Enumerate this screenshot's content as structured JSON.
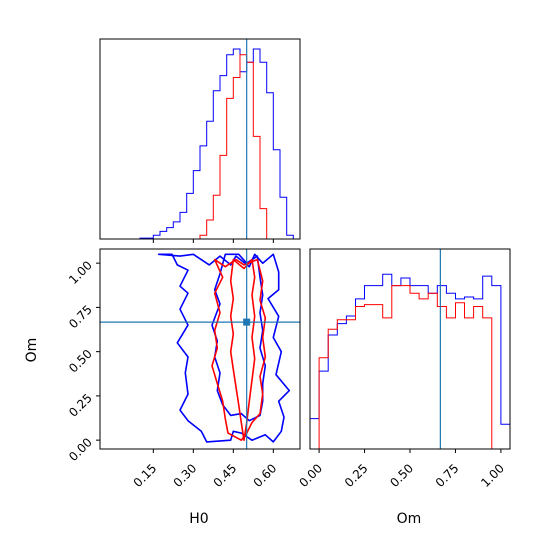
{
  "chart_data": {
    "type": "corner",
    "parameters": [
      "H0",
      "Om"
    ],
    "truth": {
      "H0": 0.5,
      "Om": 0.667,
      "color": "#1f77b4"
    },
    "series_colors": [
      "#0000ff",
      "#ff0000"
    ],
    "panels": {
      "h0_hist": {
        "type": "step-histogram",
        "xlim": [
          -0.05,
          0.7
        ],
        "bin_edges": [
          0.1,
          0.15,
          0.175,
          0.2,
          0.225,
          0.25,
          0.275,
          0.3,
          0.325,
          0.35,
          0.375,
          0.4,
          0.425,
          0.45,
          0.475,
          0.5,
          0.525,
          0.55,
          0.575,
          0.6,
          0.625,
          0.65,
          0.675,
          0.7
        ],
        "series": [
          {
            "color": "#0000ff",
            "values": [
              0.005,
              0.02,
              0.04,
              0.06,
              0.09,
              0.14,
              0.24,
              0.36,
              0.49,
              0.62,
              0.78,
              0.86,
              0.97,
              1.0,
              0.88,
              0.93,
              1.0,
              0.93,
              0.77,
              0.47,
              0.22,
              0.02,
              0.0
            ]
          },
          {
            "color": "#ff0000",
            "values": [
              0.0,
              0.0,
              0.0,
              0.0,
              0.0,
              0.0,
              0.0,
              0.0,
              0.02,
              0.1,
              0.23,
              0.44,
              0.74,
              0.85,
              0.97,
              0.93,
              0.54,
              0.16,
              0.0,
              0.0,
              0.0,
              0.0,
              0.0
            ]
          }
        ]
      },
      "om_hist": {
        "type": "step-histogram",
        "xlim": [
          -0.05,
          1.05
        ],
        "xticks": [
          "0.00",
          "0.25",
          "0.50",
          "0.75",
          "1.00"
        ],
        "bin_edges": [
          -0.05,
          0.0,
          0.05,
          0.1,
          0.15,
          0.2,
          0.25,
          0.3,
          0.35,
          0.4,
          0.45,
          0.5,
          0.55,
          0.6,
          0.65,
          0.7,
          0.75,
          0.8,
          0.85,
          0.9,
          0.95,
          1.0,
          1.05
        ],
        "series": [
          {
            "color": "#0000ff",
            "values": [
              0.16,
              0.41,
              0.6,
              0.66,
              0.7,
              0.79,
              0.86,
              0.86,
              0.92,
              0.86,
              0.9,
              0.86,
              0.86,
              0.82,
              0.86,
              0.82,
              0.79,
              0.8,
              0.79,
              0.91,
              0.86,
              0.13
            ]
          },
          {
            "color": "#ff0000",
            "values": [
              0.0,
              0.48,
              0.63,
              0.68,
              0.68,
              0.75,
              0.76,
              0.76,
              0.69,
              0.86,
              0.86,
              0.82,
              0.79,
              0.82,
              0.75,
              0.69,
              0.77,
              0.69,
              0.75,
              0.69,
              0.0,
              0.0
            ]
          }
        ]
      },
      "joint": {
        "type": "contour",
        "xlabel": "H0",
        "ylabel": "Om",
        "xlim": [
          -0.05,
          0.7
        ],
        "ylim": [
          -0.05,
          1.08
        ],
        "xticks": [
          "0.15",
          "0.30",
          "0.45",
          "0.60"
        ],
        "yticks": [
          "0.00",
          "0.25",
          "0.50",
          "0.75",
          "1.00"
        ],
        "contours": [
          {
            "color": "#0000ff",
            "points": [
              [
                0.17,
                1.05
              ],
              [
                0.22,
                1.05
              ],
              [
                0.24,
                0.99
              ],
              [
                0.28,
                0.96
              ],
              [
                0.25,
                0.87
              ],
              [
                0.28,
                0.83
              ],
              [
                0.25,
                0.74
              ],
              [
                0.28,
                0.65
              ],
              [
                0.24,
                0.55
              ],
              [
                0.28,
                0.47
              ],
              [
                0.27,
                0.38
              ],
              [
                0.28,
                0.26
              ],
              [
                0.25,
                0.17
              ],
              [
                0.28,
                0.11
              ],
              [
                0.33,
                0.05
              ],
              [
                0.35,
                -0.01
              ],
              [
                0.44,
                0.0
              ],
              [
                0.45,
                0.05
              ],
              [
                0.48,
                0.04
              ],
              [
                0.52,
                0.0
              ],
              [
                0.57,
                0.03
              ],
              [
                0.6,
                -0.01
              ],
              [
                0.63,
                0.05
              ],
              [
                0.64,
                0.13
              ],
              [
                0.62,
                0.22
              ],
              [
                0.66,
                0.28
              ],
              [
                0.61,
                0.37
              ],
              [
                0.63,
                0.5
              ],
              [
                0.6,
                0.58
              ],
              [
                0.62,
                0.7
              ],
              [
                0.58,
                0.8
              ],
              [
                0.62,
                0.85
              ],
              [
                0.62,
                0.95
              ],
              [
                0.6,
                1.05
              ],
              [
                0.56,
                1.0
              ],
              [
                0.53,
                1.05
              ],
              [
                0.51,
                0.98
              ],
              [
                0.46,
                1.04
              ],
              [
                0.44,
                0.99
              ],
              [
                0.4,
                1.04
              ],
              [
                0.36,
                0.99
              ],
              [
                0.3,
                1.05
              ],
              [
                0.25,
                1.04
              ],
              [
                0.17,
                1.05
              ]
            ]
          },
          {
            "color": "#0000ff",
            "points": [
              [
                0.42,
                1.05
              ],
              [
                0.4,
                0.94
              ],
              [
                0.38,
                0.85
              ],
              [
                0.4,
                0.77
              ],
              [
                0.37,
                0.65
              ],
              [
                0.39,
                0.56
              ],
              [
                0.38,
                0.47
              ],
              [
                0.4,
                0.38
              ],
              [
                0.39,
                0.28
              ],
              [
                0.41,
                0.2
              ],
              [
                0.44,
                0.14
              ],
              [
                0.48,
                0.15
              ],
              [
                0.51,
                0.11
              ],
              [
                0.55,
                0.14
              ],
              [
                0.56,
                0.22
              ],
              [
                0.56,
                0.32
              ],
              [
                0.57,
                0.42
              ],
              [
                0.55,
                0.52
              ],
              [
                0.56,
                0.62
              ],
              [
                0.55,
                0.72
              ],
              [
                0.56,
                0.82
              ],
              [
                0.55,
                0.92
              ],
              [
                0.54,
                1.04
              ],
              [
                0.5,
                1.0
              ],
              [
                0.47,
                1.05
              ],
              [
                0.42,
                1.05
              ]
            ]
          },
          {
            "color": "#ff0000",
            "points": [
              [
                0.38,
                1.02
              ],
              [
                0.41,
                0.92
              ],
              [
                0.38,
                0.83
              ],
              [
                0.4,
                0.72
              ],
              [
                0.38,
                0.62
              ],
              [
                0.39,
                0.52
              ],
              [
                0.37,
                0.42
              ],
              [
                0.39,
                0.32
              ],
              [
                0.41,
                0.22
              ],
              [
                0.42,
                0.12
              ],
              [
                0.43,
                0.04
              ],
              [
                0.48,
                0.0
              ],
              [
                0.5,
                0.04
              ],
              [
                0.52,
                0.1
              ],
              [
                0.55,
                0.15
              ],
              [
                0.56,
                0.26
              ],
              [
                0.55,
                0.36
              ],
              [
                0.57,
                0.47
              ],
              [
                0.56,
                0.58
              ],
              [
                0.57,
                0.69
              ],
              [
                0.55,
                0.79
              ],
              [
                0.56,
                0.9
              ],
              [
                0.54,
                1.02
              ],
              [
                0.49,
                0.99
              ],
              [
                0.46,
                1.02
              ],
              [
                0.42,
                0.98
              ],
              [
                0.38,
                1.02
              ]
            ]
          },
          {
            "color": "#ff0000",
            "points": [
              [
                0.45,
                1.02
              ],
              [
                0.44,
                0.9
              ],
              [
                0.45,
                0.8
              ],
              [
                0.44,
                0.7
              ],
              [
                0.45,
                0.6
              ],
              [
                0.44,
                0.5
              ],
              [
                0.45,
                0.4
              ],
              [
                0.46,
                0.3
              ],
              [
                0.47,
                0.2
              ],
              [
                0.48,
                0.1
              ],
              [
                0.49,
                0.0
              ],
              [
                0.5,
                0.1
              ],
              [
                0.51,
                0.22
              ],
              [
                0.52,
                0.34
              ],
              [
                0.53,
                0.46
              ],
              [
                0.52,
                0.58
              ],
              [
                0.53,
                0.7
              ],
              [
                0.52,
                0.82
              ],
              [
                0.53,
                0.92
              ],
              [
                0.52,
                1.02
              ],
              [
                0.49,
                0.97
              ],
              [
                0.45,
                1.02
              ]
            ]
          }
        ]
      }
    }
  }
}
